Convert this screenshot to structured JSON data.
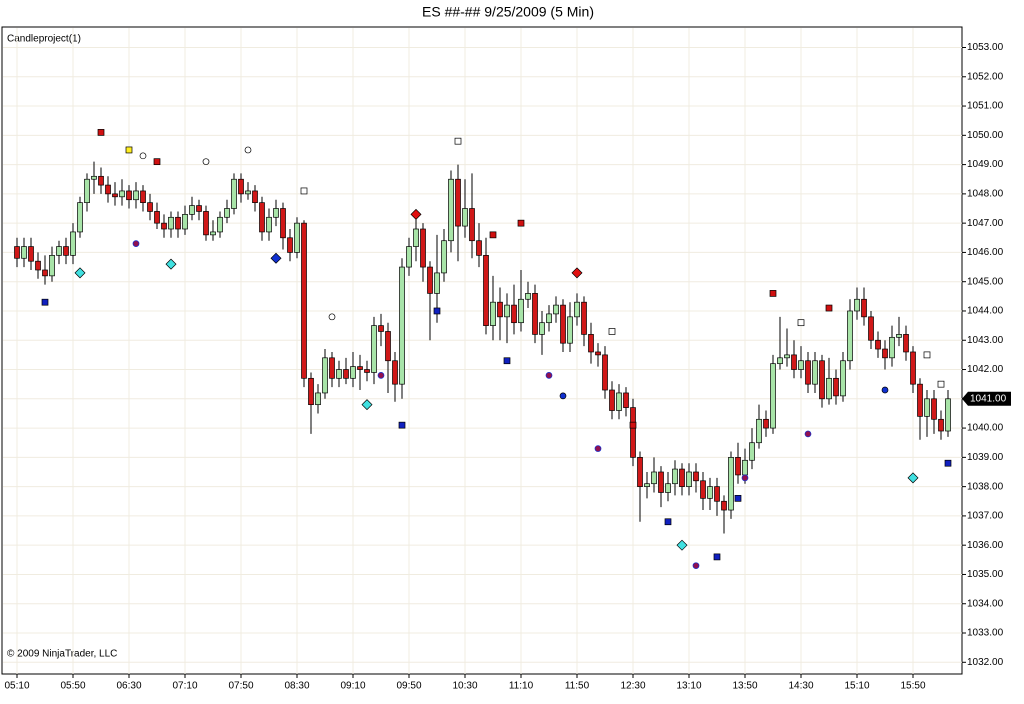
{
  "chart_data": {
    "type": "candlestick",
    "title": "ES ##-##  9/25/2009 (5 Min)",
    "indicator_label": "Candleproject(1)",
    "copyright": "© 2009 NinjaTrader, LLC",
    "last_price": {
      "value": 1041,
      "label": "1041.00"
    },
    "up_color": "#a8e4a8",
    "down_color": "#d01818",
    "grid": true,
    "ylim": [
      1031.6,
      1053.7
    ],
    "yticks": [
      {
        "value": 1032,
        "label": "1032.00"
      },
      {
        "value": 1033,
        "label": "1033.00"
      },
      {
        "value": 1034,
        "label": "1034.00"
      },
      {
        "value": 1035,
        "label": "1035.00"
      },
      {
        "value": 1036,
        "label": "1036.00"
      },
      {
        "value": 1037,
        "label": "1037.00"
      },
      {
        "value": 1038,
        "label": "1038.00"
      },
      {
        "value": 1039,
        "label": "1039.00"
      },
      {
        "value": 1040,
        "label": "1040.00"
      },
      {
        "value": 1041,
        "label": "1041.00"
      },
      {
        "value": 1042,
        "label": "1042.00"
      },
      {
        "value": 1043,
        "label": "1043.00"
      },
      {
        "value": 1044,
        "label": "1044.00"
      },
      {
        "value": 1045,
        "label": "1045.00"
      },
      {
        "value": 1046,
        "label": "1046.00"
      },
      {
        "value": 1047,
        "label": "1047.00"
      },
      {
        "value": 1048,
        "label": "1048.00"
      },
      {
        "value": 1049,
        "label": "1049.00"
      },
      {
        "value": 1050,
        "label": "1050.00"
      },
      {
        "value": 1051,
        "label": "1051.00"
      },
      {
        "value": 1052,
        "label": "1052.00"
      },
      {
        "value": 1053,
        "label": "1053.00"
      }
    ],
    "categories": [
      "05:10",
      null,
      null,
      null,
      null,
      null,
      null,
      null,
      "05:50",
      null,
      null,
      null,
      null,
      null,
      null,
      null,
      "06:30",
      null,
      null,
      null,
      null,
      null,
      null,
      null,
      "07:10",
      null,
      null,
      null,
      null,
      null,
      null,
      null,
      "07:50",
      null,
      null,
      null,
      null,
      null,
      null,
      null,
      "08:30",
      null,
      null,
      null,
      null,
      null,
      null,
      null,
      "09:10",
      null,
      null,
      null,
      null,
      null,
      null,
      null,
      "09:50",
      null,
      null,
      null,
      null,
      null,
      null,
      null,
      "10:30",
      null,
      null,
      null,
      null,
      null,
      null,
      null,
      "11:10",
      null,
      null,
      null,
      null,
      null,
      null,
      null,
      "11:50",
      null,
      null,
      null,
      null,
      null,
      null,
      null,
      "12:30",
      null,
      null,
      null,
      null,
      null,
      null,
      null,
      "13:10",
      null,
      null,
      null,
      null,
      null,
      null,
      null,
      "13:50",
      null,
      null,
      null,
      null,
      null,
      null,
      null,
      "14:30",
      null,
      null,
      null,
      null,
      null,
      null,
      null,
      "15:10",
      null,
      null,
      null,
      null,
      null,
      null,
      null,
      "15:50",
      null,
      null,
      null,
      null,
      null
    ],
    "candles": [
      [
        1046.2,
        1046.5,
        1045.5,
        1045.8
      ],
      [
        1045.8,
        1046.5,
        1045.5,
        1046.2
      ],
      [
        1046.2,
        1046.5,
        1045.4,
        1045.7
      ],
      [
        1045.7,
        1046.0,
        1045.1,
        1045.4
      ],
      [
        1045.4,
        1045.9,
        1044.9,
        1045.2
      ],
      [
        1045.2,
        1046.2,
        1045.0,
        1045.9
      ],
      [
        1045.9,
        1046.4,
        1045.6,
        1046.2
      ],
      [
        1046.2,
        1046.5,
        1045.6,
        1045.9
      ],
      [
        1045.9,
        1047.0,
        1045.6,
        1046.7
      ],
      [
        1046.7,
        1047.9,
        1046.5,
        1047.7
      ],
      [
        1047.7,
        1048.7,
        1047.4,
        1048.5
      ],
      [
        1048.5,
        1049.1,
        1048.0,
        1048.6
      ],
      [
        1048.6,
        1048.9,
        1048.0,
        1048.3
      ],
      [
        1048.3,
        1048.6,
        1047.7,
        1048.0
      ],
      [
        1048.0,
        1048.4,
        1047.6,
        1047.9
      ],
      [
        1047.9,
        1048.5,
        1047.6,
        1048.1
      ],
      [
        1048.1,
        1048.3,
        1047.5,
        1047.8
      ],
      [
        1047.8,
        1048.4,
        1047.5,
        1048.1
      ],
      [
        1048.1,
        1048.3,
        1047.4,
        1047.7
      ],
      [
        1047.7,
        1048.0,
        1047.1,
        1047.4
      ],
      [
        1047.4,
        1047.7,
        1046.8,
        1047.0
      ],
      [
        1047.0,
        1047.3,
        1046.5,
        1046.8
      ],
      [
        1046.8,
        1047.4,
        1046.5,
        1047.2
      ],
      [
        1047.2,
        1047.4,
        1046.5,
        1046.8
      ],
      [
        1046.8,
        1047.6,
        1046.6,
        1047.3
      ],
      [
        1047.3,
        1047.9,
        1047.1,
        1047.6
      ],
      [
        1047.6,
        1047.8,
        1047.1,
        1047.4
      ],
      [
        1047.4,
        1047.6,
        1046.4,
        1046.6
      ],
      [
        1046.6,
        1047.1,
        1046.4,
        1046.7
      ],
      [
        1046.7,
        1047.4,
        1046.5,
        1047.2
      ],
      [
        1047.2,
        1047.8,
        1047.0,
        1047.5
      ],
      [
        1047.5,
        1048.7,
        1047.3,
        1048.5
      ],
      [
        1048.5,
        1048.7,
        1047.7,
        1048.0
      ],
      [
        1048.0,
        1048.4,
        1047.8,
        1048.1
      ],
      [
        1048.1,
        1048.3,
        1047.4,
        1047.7
      ],
      [
        1047.7,
        1047.9,
        1046.4,
        1046.7
      ],
      [
        1046.7,
        1047.5,
        1046.4,
        1047.2
      ],
      [
        1047.2,
        1047.8,
        1046.9,
        1047.5
      ],
      [
        1047.5,
        1047.7,
        1046.1,
        1046.5
      ],
      [
        1046.5,
        1046.8,
        1045.7,
        1046.0
      ],
      [
        1046.0,
        1047.2,
        1045.8,
        1047.0
      ],
      [
        1047.0,
        1047.1,
        1041.4,
        1041.7
      ],
      [
        1041.7,
        1041.9,
        1039.8,
        1040.8
      ],
      [
        1040.8,
        1041.5,
        1040.5,
        1041.2
      ],
      [
        1041.2,
        1042.7,
        1041.0,
        1042.4
      ],
      [
        1042.4,
        1042.6,
        1041.4,
        1041.7
      ],
      [
        1041.7,
        1042.3,
        1041.4,
        1042.0
      ],
      [
        1042.0,
        1042.4,
        1041.5,
        1041.7
      ],
      [
        1041.7,
        1042.6,
        1041.4,
        1042.1
      ],
      [
        1042.1,
        1042.5,
        1041.3,
        1042.0
      ],
      [
        1042.0,
        1042.3,
        1041.6,
        1041.9
      ],
      [
        1041.9,
        1043.8,
        1041.5,
        1043.5
      ],
      [
        1043.5,
        1043.9,
        1042.8,
        1043.3
      ],
      [
        1043.3,
        1043.6,
        1041.2,
        1042.3
      ],
      [
        1042.3,
        1042.6,
        1040.9,
        1041.5
      ],
      [
        1041.5,
        1045.8,
        1041.0,
        1045.5
      ],
      [
        1045.5,
        1046.5,
        1045.2,
        1046.2
      ],
      [
        1046.2,
        1047.3,
        1045.7,
        1046.8
      ],
      [
        1046.8,
        1047.0,
        1045.0,
        1045.5
      ],
      [
        1045.5,
        1045.7,
        1043.0,
        1044.6
      ],
      [
        1044.6,
        1046.6,
        1043.6,
        1045.3
      ],
      [
        1045.3,
        1046.8,
        1045.0,
        1046.4
      ],
      [
        1046.4,
        1048.8,
        1046.0,
        1048.5
      ],
      [
        1048.5,
        1049.0,
        1045.7,
        1046.9
      ],
      [
        1046.9,
        1048.5,
        1046.5,
        1047.5
      ],
      [
        1047.5,
        1048.7,
        1045.8,
        1046.4
      ],
      [
        1046.4,
        1047.0,
        1045.5,
        1045.9
      ],
      [
        1045.9,
        1046.5,
        1043.2,
        1043.5
      ],
      [
        1043.5,
        1045.2,
        1043.0,
        1044.3
      ],
      [
        1044.3,
        1044.8,
        1043.0,
        1043.8
      ],
      [
        1043.8,
        1044.6,
        1042.9,
        1044.2
      ],
      [
        1044.2,
        1044.9,
        1043.2,
        1043.6
      ],
      [
        1043.6,
        1045.4,
        1043.3,
        1044.4
      ],
      [
        1044.4,
        1045.0,
        1044.1,
        1044.6
      ],
      [
        1044.6,
        1044.9,
        1042.9,
        1043.2
      ],
      [
        1043.2,
        1044.0,
        1042.5,
        1043.6
      ],
      [
        1043.6,
        1044.2,
        1043.3,
        1043.9
      ],
      [
        1043.9,
        1044.5,
        1043.6,
        1044.2
      ],
      [
        1044.2,
        1044.4,
        1042.6,
        1042.9
      ],
      [
        1042.9,
        1044.3,
        1042.6,
        1043.8
      ],
      [
        1043.8,
        1044.6,
        1043.5,
        1044.3
      ],
      [
        1044.3,
        1044.5,
        1042.8,
        1043.2
      ],
      [
        1043.2,
        1043.6,
        1042.2,
        1042.6
      ],
      [
        1042.6,
        1042.9,
        1042.1,
        1042.5
      ],
      [
        1042.5,
        1042.8,
        1041.0,
        1041.3
      ],
      [
        1041.3,
        1041.6,
        1040.3,
        1040.6
      ],
      [
        1040.6,
        1041.5,
        1040.3,
        1041.2
      ],
      [
        1041.2,
        1041.4,
        1040.4,
        1040.7
      ],
      [
        1040.7,
        1041.0,
        1038.7,
        1039.0
      ],
      [
        1039.0,
        1039.2,
        1036.8,
        1038.0
      ],
      [
        1038.0,
        1038.5,
        1037.6,
        1038.1
      ],
      [
        1038.1,
        1039.0,
        1037.8,
        1038.5
      ],
      [
        1038.5,
        1038.7,
        1037.3,
        1037.8
      ],
      [
        1037.8,
        1038.5,
        1037.5,
        1038.1
      ],
      [
        1038.1,
        1038.9,
        1037.7,
        1038.6
      ],
      [
        1038.6,
        1038.8,
        1037.7,
        1038.0
      ],
      [
        1038.0,
        1038.8,
        1037.7,
        1038.5
      ],
      [
        1038.5,
        1038.8,
        1037.8,
        1038.2
      ],
      [
        1038.2,
        1038.5,
        1037.2,
        1037.6
      ],
      [
        1037.6,
        1038.3,
        1037.2,
        1038.0
      ],
      [
        1038.0,
        1038.3,
        1037.0,
        1037.5
      ],
      [
        1037.5,
        1037.7,
        1036.4,
        1037.2
      ],
      [
        1037.2,
        1039.2,
        1036.9,
        1039.0
      ],
      [
        1039.0,
        1039.5,
        1038.1,
        1038.4
      ],
      [
        1038.4,
        1039.3,
        1038.1,
        1038.9
      ],
      [
        1038.9,
        1040.0,
        1038.6,
        1039.5
      ],
      [
        1039.5,
        1040.8,
        1039.3,
        1040.3
      ],
      [
        1040.3,
        1040.6,
        1039.7,
        1040.0
      ],
      [
        1040.0,
        1042.5,
        1039.8,
        1042.2
      ],
      [
        1042.2,
        1043.8,
        1042.0,
        1042.4
      ],
      [
        1042.4,
        1043.4,
        1042.1,
        1042.5
      ],
      [
        1042.5,
        1043.0,
        1041.7,
        1042.0
      ],
      [
        1042.0,
        1042.8,
        1041.7,
        1042.3
      ],
      [
        1042.3,
        1042.6,
        1041.2,
        1041.5
      ],
      [
        1041.5,
        1042.6,
        1041.2,
        1042.3
      ],
      [
        1042.3,
        1042.5,
        1040.7,
        1041.0
      ],
      [
        1041.0,
        1042.4,
        1040.8,
        1041.7
      ],
      [
        1041.7,
        1042.0,
        1040.8,
        1041.1
      ],
      [
        1041.1,
        1042.6,
        1040.9,
        1042.3
      ],
      [
        1042.3,
        1044.4,
        1042.0,
        1044.0
      ],
      [
        1044.0,
        1044.8,
        1043.7,
        1044.4
      ],
      [
        1044.4,
        1044.8,
        1043.5,
        1043.8
      ],
      [
        1043.8,
        1044.0,
        1042.7,
        1043.0
      ],
      [
        1043.0,
        1043.3,
        1042.4,
        1042.7
      ],
      [
        1042.7,
        1043.0,
        1042.0,
        1042.4
      ],
      [
        1042.4,
        1043.5,
        1042.1,
        1043.1
      ],
      [
        1043.1,
        1043.8,
        1042.8,
        1043.2
      ],
      [
        1043.2,
        1043.5,
        1042.3,
        1042.6
      ],
      [
        1042.6,
        1042.8,
        1041.2,
        1041.5
      ],
      [
        1041.5,
        1041.7,
        1039.6,
        1040.4
      ],
      [
        1040.4,
        1041.3,
        1039.7,
        1041.0
      ],
      [
        1041.0,
        1041.3,
        1039.8,
        1040.3
      ],
      [
        1040.3,
        1040.6,
        1039.6,
        1039.9
      ],
      [
        1039.9,
        1041.3,
        1039.7,
        1041.0
      ]
    ],
    "markers": [
      {
        "bar": 4,
        "value": 1044.3,
        "shape": "square",
        "color": "#1020c0"
      },
      {
        "bar": 9,
        "value": 1045.3,
        "shape": "diamond",
        "color": "#40e0e0"
      },
      {
        "bar": 12,
        "value": 1050.1,
        "shape": "square",
        "color": "#d01010"
      },
      {
        "bar": 16,
        "value": 1049.5,
        "shape": "square",
        "color": "#ffee22"
      },
      {
        "bar": 18,
        "value": 1049.3,
        "shape": "circle",
        "color": "#ffffff"
      },
      {
        "bar": 17,
        "value": 1046.3,
        "shape": "circle",
        "color": "#901050"
      },
      {
        "bar": 20,
        "value": 1049.1,
        "shape": "square",
        "color": "#d01010"
      },
      {
        "bar": 22,
        "value": 1045.6,
        "shape": "diamond",
        "color": "#40e0e0"
      },
      {
        "bar": 27,
        "value": 1049.1,
        "shape": "circle",
        "color": "#ffffff"
      },
      {
        "bar": 33,
        "value": 1049.5,
        "shape": "circle",
        "color": "#ffffff"
      },
      {
        "bar": 37,
        "value": 1045.8,
        "shape": "diamond",
        "color": "#1030d0"
      },
      {
        "bar": 41,
        "value": 1048.1,
        "shape": "square",
        "color": "#ffffff"
      },
      {
        "bar": 45,
        "value": 1043.8,
        "shape": "circle",
        "color": "#ffffff"
      },
      {
        "bar": 52,
        "value": 1041.8,
        "shape": "circle",
        "color": "#901050"
      },
      {
        "bar": 50,
        "value": 1040.8,
        "shape": "diamond",
        "color": "#40e0e0"
      },
      {
        "bar": 55,
        "value": 1040.1,
        "shape": "square",
        "color": "#1020c0"
      },
      {
        "bar": 57,
        "value": 1047.3,
        "shape": "diamond",
        "color": "#e01010"
      },
      {
        "bar": 60,
        "value": 1044.0,
        "shape": "square",
        "color": "#1020c0"
      },
      {
        "bar": 63,
        "value": 1049.8,
        "shape": "square",
        "color": "#ffffff"
      },
      {
        "bar": 68,
        "value": 1046.6,
        "shape": "square",
        "color": "#d01010"
      },
      {
        "bar": 70,
        "value": 1042.3,
        "shape": "square",
        "color": "#1020c0"
      },
      {
        "bar": 72,
        "value": 1047.0,
        "shape": "square",
        "color": "#d01010"
      },
      {
        "bar": 76,
        "value": 1041.8,
        "shape": "circle",
        "color": "#901050"
      },
      {
        "bar": 78,
        "value": 1041.1,
        "shape": "circle",
        "color": "#1030d0"
      },
      {
        "bar": 80,
        "value": 1045.3,
        "shape": "diamond",
        "color": "#e01010"
      },
      {
        "bar": 85,
        "value": 1043.3,
        "shape": "square",
        "color": "#ffffff"
      },
      {
        "bar": 83,
        "value": 1039.3,
        "shape": "circle",
        "color": "#901050"
      },
      {
        "bar": 88,
        "value": 1040.1,
        "shape": "square",
        "color": "#d01010"
      },
      {
        "bar": 93,
        "value": 1036.8,
        "shape": "square",
        "color": "#1020c0"
      },
      {
        "bar": 95,
        "value": 1036.0,
        "shape": "diamond",
        "color": "#40e0e0"
      },
      {
        "bar": 97,
        "value": 1035.3,
        "shape": "circle",
        "color": "#901050"
      },
      {
        "bar": 100,
        "value": 1035.6,
        "shape": "square",
        "color": "#1020c0"
      },
      {
        "bar": 103,
        "value": 1037.6,
        "shape": "square",
        "color": "#1020c0"
      },
      {
        "bar": 104,
        "value": 1038.3,
        "shape": "circle",
        "color": "#901050"
      },
      {
        "bar": 108,
        "value": 1044.6,
        "shape": "square",
        "color": "#d01010"
      },
      {
        "bar": 112,
        "value": 1043.6,
        "shape": "square",
        "color": "#ffffff"
      },
      {
        "bar": 113,
        "value": 1039.8,
        "shape": "circle",
        "color": "#901050"
      },
      {
        "bar": 116,
        "value": 1044.1,
        "shape": "square",
        "color": "#d01010"
      },
      {
        "bar": 124,
        "value": 1041.3,
        "shape": "circle",
        "color": "#1030d0"
      },
      {
        "bar": 128,
        "value": 1038.3,
        "shape": "diamond",
        "color": "#40e0e0"
      },
      {
        "bar": 130,
        "value": 1042.5,
        "shape": "square",
        "color": "#ffffff"
      },
      {
        "bar": 132,
        "value": 1041.5,
        "shape": "square",
        "color": "#ffffff"
      },
      {
        "bar": 133,
        "value": 1038.8,
        "shape": "square",
        "color": "#1020c0"
      }
    ]
  }
}
